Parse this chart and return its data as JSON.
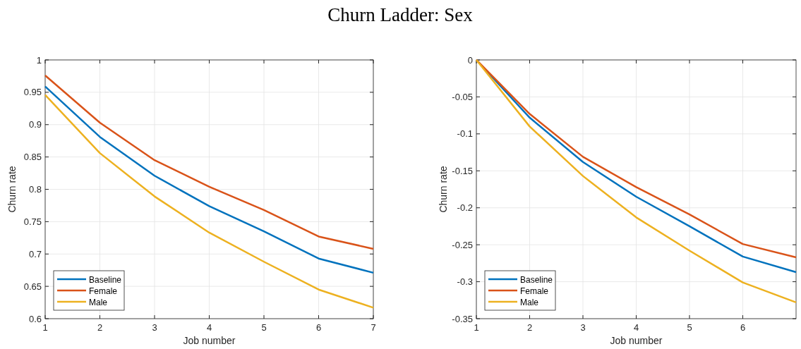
{
  "chart_data": [
    {
      "type": "line",
      "title": "Churn Ladder: Sex",
      "xlabel": "Job number",
      "ylabel": "Churn rate",
      "x": [
        1,
        2,
        3,
        4,
        5,
        6,
        7
      ],
      "xlim": [
        1,
        7
      ],
      "xticks": [
        1,
        2,
        3,
        4,
        5,
        6,
        7
      ],
      "ylim": [
        0.6,
        1
      ],
      "yticks": [
        0.6,
        0.65,
        0.7,
        0.75,
        0.8,
        0.85,
        0.9,
        0.95,
        1
      ],
      "grid": true,
      "legend": "bottom left",
      "line_style": "solid",
      "marker": "none",
      "series": [
        {
          "name": "Baseline",
          "color": "#0072bd",
          "values": [
            0.959,
            0.881,
            0.821,
            0.774,
            0.735,
            0.693,
            0.671
          ]
        },
        {
          "name": "Female",
          "color": "#d95319",
          "values": [
            0.976,
            0.903,
            0.845,
            0.804,
            0.768,
            0.727,
            0.708
          ]
        },
        {
          "name": "Male",
          "color": "#edb120",
          "values": [
            0.946,
            0.856,
            0.789,
            0.733,
            0.688,
            0.645,
            0.617
          ]
        }
      ]
    },
    {
      "type": "line",
      "xlabel": "Job number",
      "ylabel": "Churn rate",
      "x": [
        1,
        2,
        3,
        4,
        5,
        6,
        7
      ],
      "xlim": [
        1,
        7
      ],
      "xticks": [
        1,
        2,
        3,
        4,
        5,
        6
      ],
      "ylim": [
        -0.35,
        0
      ],
      "yticks": [
        -0.35,
        -0.3,
        -0.25,
        -0.2,
        -0.15,
        -0.1,
        -0.05,
        0
      ],
      "grid": true,
      "legend": "bottom left",
      "line_style": "solid",
      "marker": "none",
      "series": [
        {
          "name": "Baseline",
          "color": "#0072bd",
          "values": [
            0,
            -0.078,
            -0.138,
            -0.185,
            -0.225,
            -0.266,
            -0.287
          ]
        },
        {
          "name": "Female",
          "color": "#d95319",
          "values": [
            0,
            -0.073,
            -0.131,
            -0.172,
            -0.209,
            -0.249,
            -0.267
          ]
        },
        {
          "name": "Male",
          "color": "#edb120",
          "values": [
            0,
            -0.09,
            -0.157,
            -0.213,
            -0.258,
            -0.301,
            -0.328
          ]
        }
      ]
    }
  ]
}
